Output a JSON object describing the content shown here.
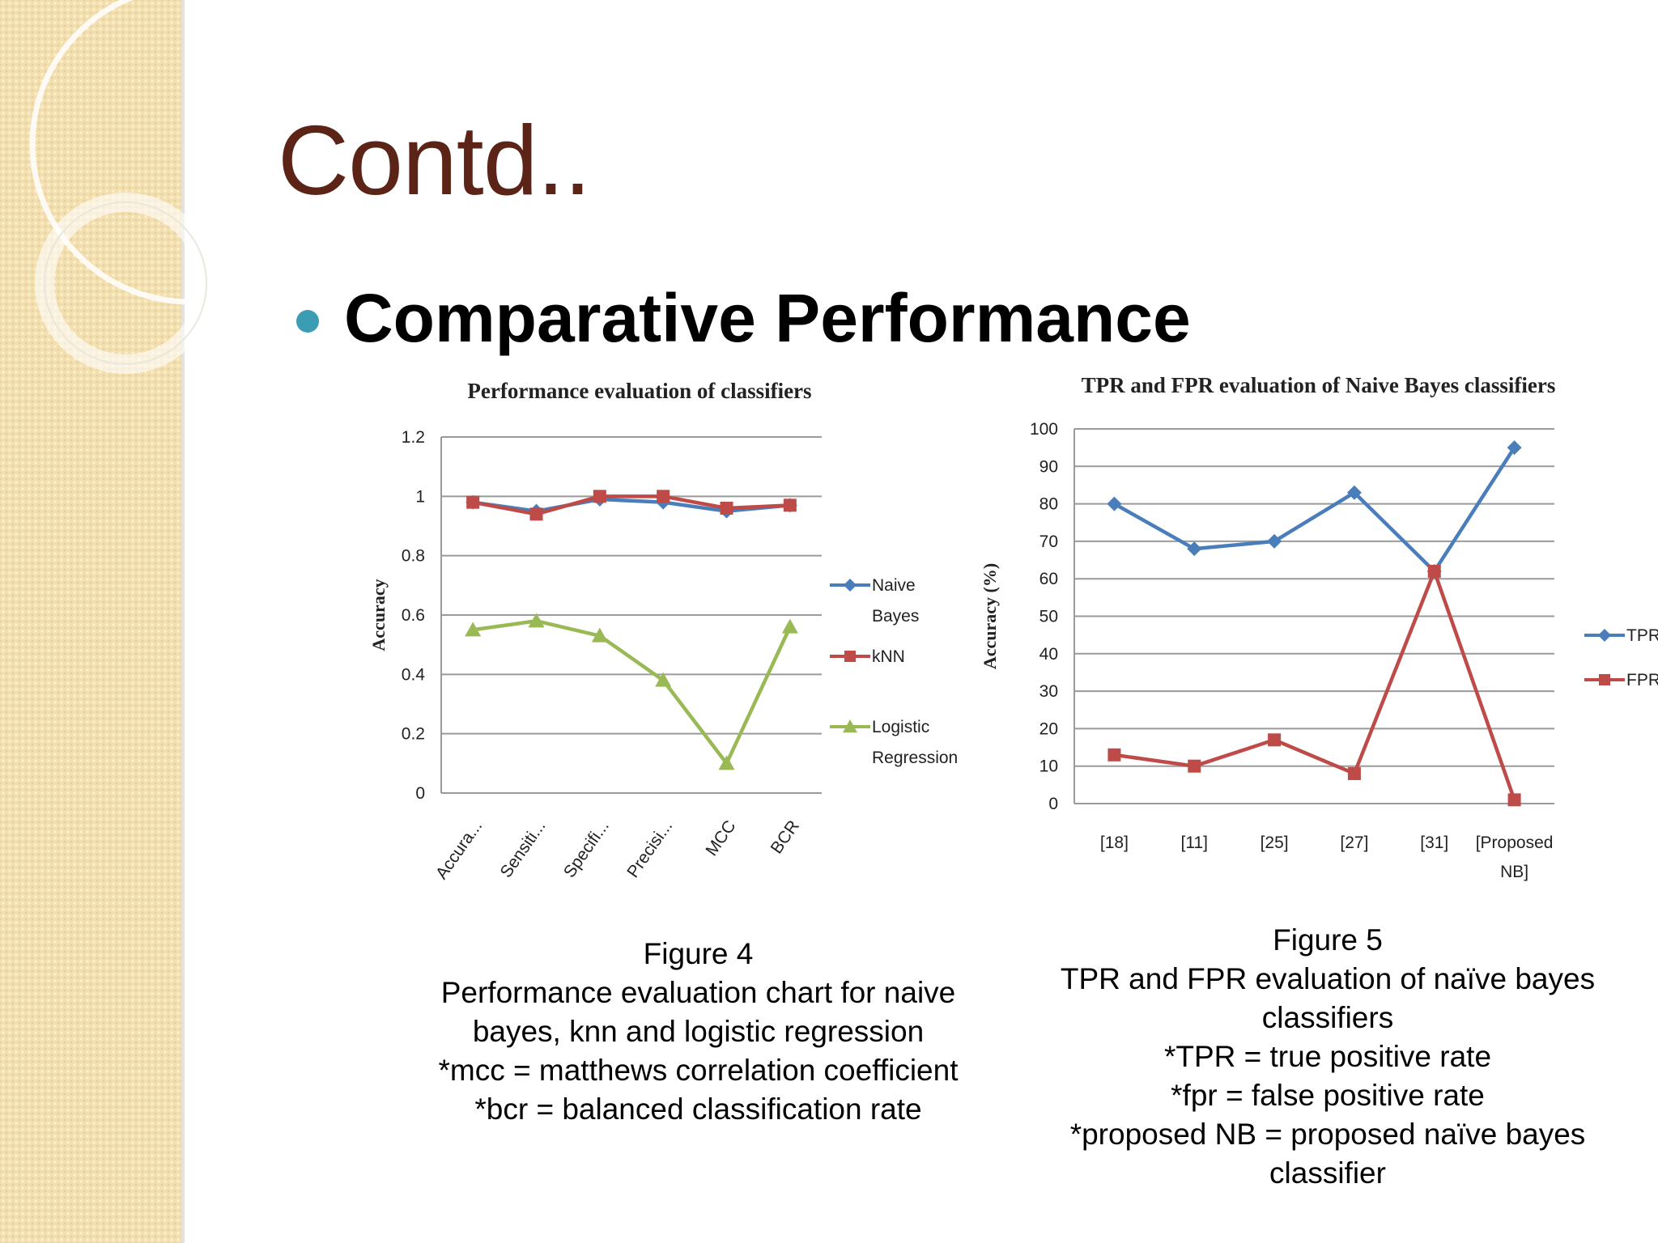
{
  "slide": {
    "title": "Contd..",
    "bullet": "Comparative Performance"
  },
  "colors": {
    "title": "#5c2416",
    "bullet": "#3a9db3",
    "naive_bayes": "#4a7ebb",
    "knn": "#be4b48",
    "logistic": "#98b954"
  },
  "chart_data": [
    {
      "type": "line",
      "title": "Performance evaluation of classifiers",
      "xlabel": "",
      "ylabel": "Accuracy",
      "categories": [
        "Accura...",
        "Sensiti...",
        "Specifi...",
        "Precisi...",
        "MCC",
        "BCR"
      ],
      "y_ticks": [
        "0",
        "0.2",
        "0.4",
        "0.6",
        "0.8",
        "1",
        "1.2"
      ],
      "ylim": [
        0,
        1.2
      ],
      "grid": true,
      "legend_position": "right",
      "series": [
        {
          "name": "Naive Bayes",
          "legend_lines": [
            "Naive",
            "Bayes"
          ],
          "marker": "diamond",
          "values": [
            0.98,
            0.95,
            0.99,
            0.98,
            0.95,
            0.97
          ]
        },
        {
          "name": "kNN",
          "legend_lines": [
            "kNN"
          ],
          "marker": "square",
          "values": [
            0.98,
            0.94,
            1.0,
            1.0,
            0.96,
            0.97
          ]
        },
        {
          "name": "Logistic Regression",
          "legend_lines": [
            "Logistic",
            "Regression"
          ],
          "marker": "triangle",
          "values": [
            0.55,
            0.58,
            0.53,
            0.38,
            0.1,
            0.56
          ]
        }
      ]
    },
    {
      "type": "line",
      "title": "TPR and FPR evaluation of Naive Bayes classifiers",
      "xlabel": "",
      "ylabel": "Accuracy (%)",
      "categories": [
        "[18]",
        "[11]",
        "[25]",
        "[27]",
        "[31]",
        "[Proposed NB]"
      ],
      "category_lines": [
        [
          "[18]"
        ],
        [
          "[11]"
        ],
        [
          "[25]"
        ],
        [
          "[27]"
        ],
        [
          "[31]"
        ],
        [
          "[Proposed",
          "NB]"
        ]
      ],
      "y_ticks": [
        "0",
        "10",
        "20",
        "30",
        "40",
        "50",
        "60",
        "70",
        "80",
        "90",
        "100"
      ],
      "ylim": [
        0,
        100
      ],
      "grid": true,
      "legend_position": "right",
      "series": [
        {
          "name": "TPR",
          "legend_lines": [
            "TPR"
          ],
          "marker": "diamond",
          "values": [
            80,
            68,
            70,
            83,
            62,
            95
          ]
        },
        {
          "name": "FPR",
          "legend_lines": [
            "FPR"
          ],
          "marker": "square",
          "values": [
            13,
            10,
            17,
            8,
            62,
            1
          ]
        }
      ]
    }
  ],
  "captions": [
    {
      "lines": [
        "Figure 4",
        "Performance evaluation chart for naive",
        "bayes, knn and logistic regression",
        "*mcc = matthews correlation coefficient",
        "*bcr = balanced classification rate"
      ]
    },
    {
      "lines": [
        "Figure 5",
        "TPR and FPR evaluation of naïve bayes",
        "classifiers",
        "*TPR = true positive rate",
        "*fpr = false positive rate",
        "*proposed NB = proposed naïve bayes",
        "classifier"
      ]
    }
  ]
}
